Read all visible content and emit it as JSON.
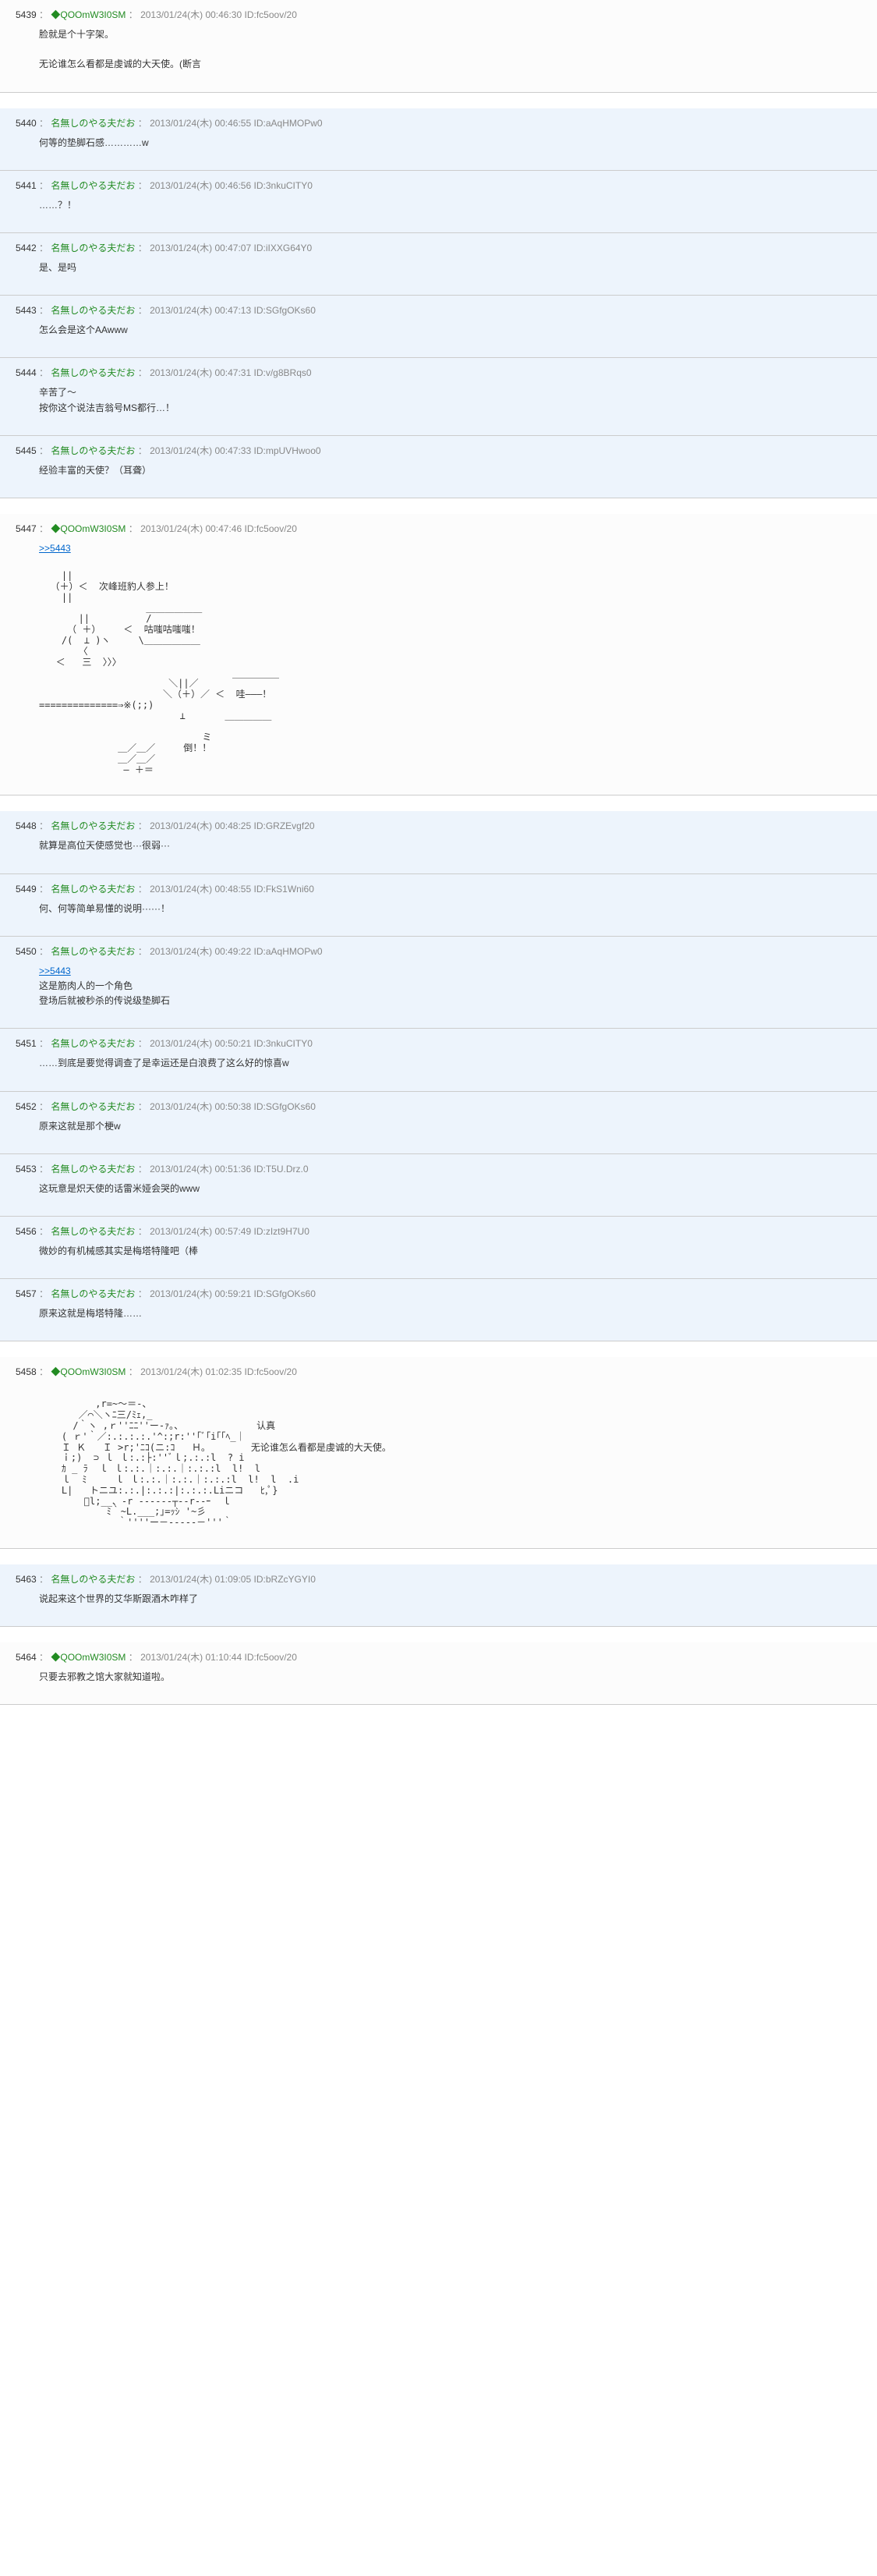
{
  "posts": [
    {
      "num": "5439",
      "user": "◆QOOmW3I0SM",
      "date": "2013/01/24(木) 00:46:30",
      "id": "ID:fc5oov/20",
      "type": "op",
      "body": "脸就是个十字架。\n\n无论谁怎么看都是虔诚的大天使。(断言"
    },
    {
      "num": "5440",
      "user": "名無しのやる夫だお",
      "date": "2013/01/24(木) 00:46:55",
      "id": "ID:aAqHMOPw0",
      "type": "reg",
      "body": "何等的垫脚石感…………w"
    },
    {
      "num": "5441",
      "user": "名無しのやる夫だお",
      "date": "2013/01/24(木) 00:46:56",
      "id": "ID:3nkuCITY0",
      "type": "reg",
      "body": "……？！"
    },
    {
      "num": "5442",
      "user": "名無しのやる夫だお",
      "date": "2013/01/24(木) 00:47:07",
      "id": "ID:iIXXG64Y0",
      "type": "reg",
      "body": "是、是吗"
    },
    {
      "num": "5443",
      "user": "名無しのやる夫だお",
      "date": "2013/01/24(木) 00:47:13",
      "id": "ID:SGfgOKs60",
      "type": "reg",
      "body": "怎么会是这个AAwww"
    },
    {
      "num": "5444",
      "user": "名無しのやる夫だお",
      "date": "2013/01/24(木) 00:47:31",
      "id": "ID:v/g8BRqs0",
      "type": "reg",
      "body": "辛苦了～\n按你这个说法吉翁号MS都行…！"
    },
    {
      "num": "5445",
      "user": "名無しのやる夫だお",
      "date": "2013/01/24(木) 00:47:33",
      "id": "ID:mpUVHwoo0",
      "type": "reg",
      "body": "经验丰富的天使？（耳聋）"
    },
    {
      "num": "5447",
      "user": "◆QOOmW3I0SM",
      "date": "2013/01/24(木) 00:47:46",
      "id": "ID:fc5oov/20",
      "type": "op",
      "ref": ">>5443",
      "aa": "    ||\n  （＋）＜  次峰班豹人参上！\n    ||\n                   ＿＿＿＿＿＿\n       ||          /\n     （ ＋）    ＜  咕嗤咕嗤嗤！\n    /(  ⊥ )ヽ     \\＿＿＿＿＿＿\n       〈\n   ＜   三  〉〉〉\n\n                       ＼||／      ￣￣￣￣￣\n                      ＼（＋）／ ＜  哇———！\n==============⇒※(;;)       \n                         ⊥       ＿＿＿＿＿\n\n                             ミ\n              ＿／＿／     倒！！\n              ＿／＿／\n               — ＋＝"
    },
    {
      "num": "5448",
      "user": "名無しのやる夫だお",
      "date": "2013/01/24(木) 00:48:25",
      "id": "ID:GRZEvgf20",
      "type": "reg",
      "body": "就算是高位天使感觉也···很弱···"
    },
    {
      "num": "5449",
      "user": "名無しのやる夫だお",
      "date": "2013/01/24(木) 00:48:55",
      "id": "ID:FkS1Wni60",
      "type": "reg",
      "body": "何、何等简单易懂的说明······！"
    },
    {
      "num": "5450",
      "user": "名無しのやる夫だお",
      "date": "2013/01/24(木) 00:49:22",
      "id": "ID:aAqHMOPw0",
      "type": "reg",
      "ref": ">>5443",
      "body": "这是筋肉人的一个角色\n登场后就被秒杀的传说级垫脚石"
    },
    {
      "num": "5451",
      "user": "名無しのやる夫だお",
      "date": "2013/01/24(木) 00:50:21",
      "id": "ID:3nkuCITY0",
      "type": "reg",
      "body": "……到底是要觉得调查了是幸运还是白浪费了这么好的惊喜w"
    },
    {
      "num": "5452",
      "user": "名無しのやる夫だお",
      "date": "2013/01/24(木) 00:50:38",
      "id": "ID:SGfgOKs60",
      "type": "reg",
      "body": "原来这就是那个梗w"
    },
    {
      "num": "5453",
      "user": "名無しのやる夫だお",
      "date": "2013/01/24(木) 00:51:36",
      "id": "ID:T5U.Drz.0",
      "type": "reg",
      "body": "这玩意是炽天使的话雷米娅会哭的www"
    },
    {
      "num": "5456",
      "user": "名無しのやる夫だお",
      "date": "2013/01/24(木) 00:57:49",
      "id": "ID:zIzt9H7U0",
      "type": "reg",
      "body": "微妙的有机械感其实是梅塔特隆吧（棒"
    },
    {
      "num": "5457",
      "user": "名無しのやる夫だお",
      "date": "2013/01/24(木) 00:59:21",
      "id": "ID:SGfgOKs60",
      "type": "reg",
      "body": "原来这就是梅塔特隆……"
    },
    {
      "num": "5458",
      "user": "◆QOOmW3I0SM",
      "date": "2013/01/24(木) 01:02:35",
      "id": "ID:fc5oov/20",
      "type": "op",
      "aa": "          ,r=~～＝-、\n       ／⌒＼ヽﾆ三/ﾐｪ,_\n      /｀ヽ ,ｒ''ﾆﾆ''ー-ｧ｡、             认真\n    ( ｒ'｀／:.:.:.:.'^:;r:''｢ﾞ｢i｢｢ﾍ_｜\n    Ｉ Ｋ   Ｉ >r;'ﾆｺ(ニ:ｺ   Ｈ｡        无论谁怎么看都是虔诚的大天使。\n    ｉ;)  ⊃ ｌ ｌ:.:├:''ﾞｌ;.:.:l  ? i \n    ｶ _ ﾗ  ｌ ｌ:.:.｜:.:.｜:.:.:l  l!  l\n    ｌ  ﾐ     ｌ ｌ:.:.｜:.:.｜:.:.:l  l!  l  .i \n    L|   トニユ:.:.|:.:.:|:.:.:.Liニコ   ﾋ,ﾟ}\n        ﾞl;__、-r ------┬--r--ｰ  ｌ\n            ﾐ｀~L.___;｣=ｯｼ '~彡\n              ｀''''ー－-----－'''｀"
    },
    {
      "num": "5463",
      "user": "名無しのやる夫だお",
      "date": "2013/01/24(木) 01:09:05",
      "id": "ID:bRZcYGYI0",
      "type": "reg",
      "body": "说起来这个世界的艾华斯跟酒木咋样了"
    },
    {
      "num": "5464",
      "user": "◆QOOmW3I0SM",
      "date": "2013/01/24(木) 01:10:44",
      "id": "ID:fc5oov/20",
      "type": "op",
      "body": "只要去邪教之馆大家就知道啦。"
    }
  ]
}
